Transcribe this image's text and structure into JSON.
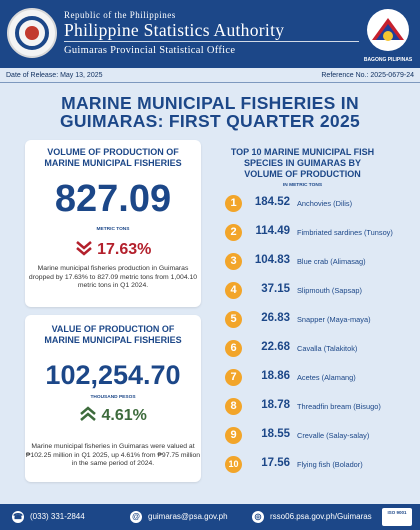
{
  "header": {
    "republic": "Republic of the Philippines",
    "agency": "Philippine Statistics Authority",
    "office": "Guimaras Provincial Statistical Office",
    "bagong_label": "BAGONG PILIPINAS"
  },
  "release": {
    "date": "Date of Release: May 13, 2025",
    "reference": "Reference No.: 2025-0679-24"
  },
  "title": {
    "line1": "MARINE MUNICIPAL FISHERIES IN",
    "line2": "GUIMARAS: FIRST QUARTER 2025"
  },
  "volume": {
    "heading1": "VOLUME OF PRODUCTION OF",
    "heading2": "MARINE MUNICIPAL FISHERIES",
    "value": "827.09",
    "unit": "METRIC TONS",
    "change": "17.63%",
    "direction": "down",
    "description": "Marine municipal fisheries production in Guimaras dropped by 17.63% to 827.09 metric tons from 1,004.10 metric tons in Q1 2024."
  },
  "value_card": {
    "heading1": "VALUE OF PRODUCTION OF",
    "heading2": "MARINE MUNICIPAL FISHERIES",
    "value": "102,254.70",
    "unit": "THOUSAND PESOS",
    "change": "4.61%",
    "direction": "up",
    "description": "Marine municipal fisheries in Guimaras were valued at ₱102.25 million in Q1 2025, up 4.61% from ₱97.75 million in the same period of 2024."
  },
  "top10": {
    "heading1": "TOP 10 MARINE MUNICIPAL FISH",
    "heading2": "SPECIES IN GUIMARAS BY",
    "heading3": "VOLUME OF PRODUCTION",
    "unit": "IN METRIC TONS",
    "items": [
      {
        "rank": "1",
        "value": "184.52",
        "name": "Anchovies (Dilis)"
      },
      {
        "rank": "2",
        "value": "114.49",
        "name": "Fimbriated sardines (Tunsoy)"
      },
      {
        "rank": "3",
        "value": "104.83",
        "name": "Blue crab (Alimasag)"
      },
      {
        "rank": "4",
        "value": "37.15",
        "name": "Slipmouth (Sapsap)"
      },
      {
        "rank": "5",
        "value": "26.83",
        "name": "Snapper (Maya-maya)"
      },
      {
        "rank": "6",
        "value": "22.68",
        "name": "Cavalla (Talakitok)"
      },
      {
        "rank": "7",
        "value": "18.86",
        "name": "Acetes (Alamang)"
      },
      {
        "rank": "8",
        "value": "18.78",
        "name": "Threadfin bream (Bisugo)"
      },
      {
        "rank": "9",
        "value": "18.55",
        "name": "Crevalle (Salay-salay)"
      },
      {
        "rank": "10",
        "value": "17.56",
        "name": "Flying fish (Bolador)"
      }
    ]
  },
  "footer": {
    "phone": "(033) 331-2844",
    "email": "guimaras@psa.gov.ph",
    "website": "rsso06.psa.gov.ph/Guimaras",
    "iso": "ISO 9001"
  },
  "colors": {
    "navy": "#1c4788",
    "decrease": "#b3202c",
    "increase": "#3d6b3c",
    "rank_badge": "#f2a52a"
  },
  "icons": [
    "psa-seal-icon",
    "bagong-pilipinas-logo-icon",
    "arrow-down-icon",
    "arrow-up-icon",
    "phone-icon",
    "email-icon",
    "web-icon",
    "iso-badge-icon"
  ]
}
